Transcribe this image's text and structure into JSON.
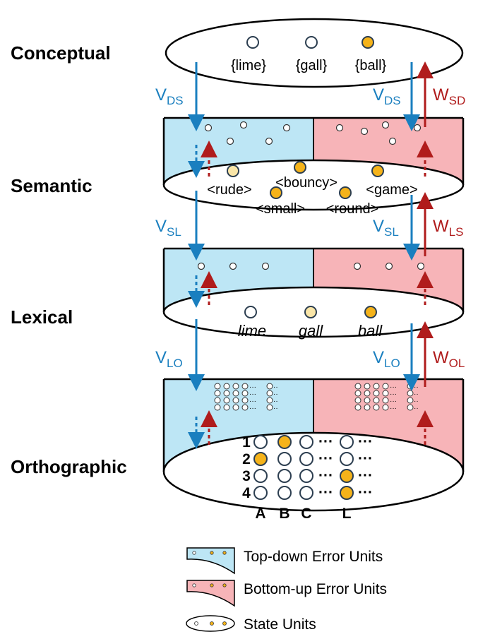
{
  "levels": {
    "conceptual": "Conceptual",
    "semantic": "Semantic",
    "lexical": "Lexical",
    "orthographic": "Orthographic"
  },
  "conceptual_units": [
    "{lime}",
    "{gall}",
    "{ball}"
  ],
  "semantic_units": {
    "row1": [
      "<rude>",
      "<bouncy>",
      "<game>"
    ],
    "row2": [
      "<small>",
      "<round>"
    ]
  },
  "lexical_units": [
    "lime",
    "gall",
    "ball"
  ],
  "weights": {
    "v_ds": {
      "main": "V",
      "sub": "DS"
    },
    "w_sd": {
      "main": "W",
      "sub": "SD"
    },
    "v_sl": {
      "main": "V",
      "sub": "SL"
    },
    "w_ls": {
      "main": "W",
      "sub": "LS"
    },
    "v_lo": {
      "main": "V",
      "sub": "LO"
    },
    "w_ol": {
      "main": "W",
      "sub": "OL"
    }
  },
  "orthography": {
    "rows": [
      "1",
      "2",
      "3",
      "4"
    ],
    "cols": [
      "A",
      "B",
      "C",
      "L"
    ],
    "ellipsis": "···"
  },
  "legend": {
    "top_down": "Top-down Error Units",
    "bottom_up": "Bottom-up Error Units",
    "state": "State Units"
  },
  "colors": {
    "top_down_fill": "#bde6f5",
    "bottom_up_fill": "#f7b4b8",
    "active_unit": "#f5b31a",
    "weak_unit": "#fae6a8",
    "blue_arrow": "#1a7fbf",
    "red_arrow": "#b01c1c"
  }
}
